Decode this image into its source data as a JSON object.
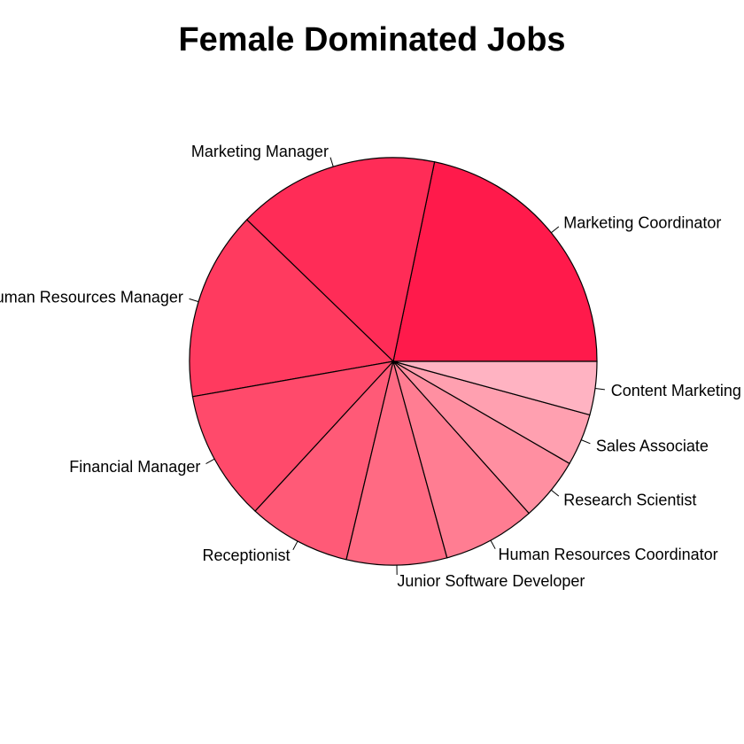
{
  "chart_data": {
    "type": "pie",
    "title": "Female Dominated Jobs",
    "slices": [
      {
        "label": "Marketing Coordinator",
        "value": 21.6,
        "color": "#FF1A4B"
      },
      {
        "label": "Marketing Manager",
        "value": 15.9,
        "color": "#FF2C57"
      },
      {
        "label": "Human Resources Manager",
        "value": 14.9,
        "color": "#FF3A5F"
      },
      {
        "label": "Financial Manager",
        "value": 10.3,
        "color": "#FF4A6B"
      },
      {
        "label": "Receptionist",
        "value": 8.1,
        "color": "#FF5A77"
      },
      {
        "label": "Junior Software Developer",
        "value": 7.9,
        "color": "#FF6A83"
      },
      {
        "label": "Human Resources Coordinator",
        "value": 7.3,
        "color": "#FF7D92"
      },
      {
        "label": "Research Scientist",
        "value": 5.0,
        "color": "#FF8FA1"
      },
      {
        "label": "Sales Associate",
        "value": 4.1,
        "color": "#FFA0B0"
      },
      {
        "label": "Content Marketing Manager",
        "value": 4.2,
        "color": "#FFB3C2"
      }
    ]
  }
}
